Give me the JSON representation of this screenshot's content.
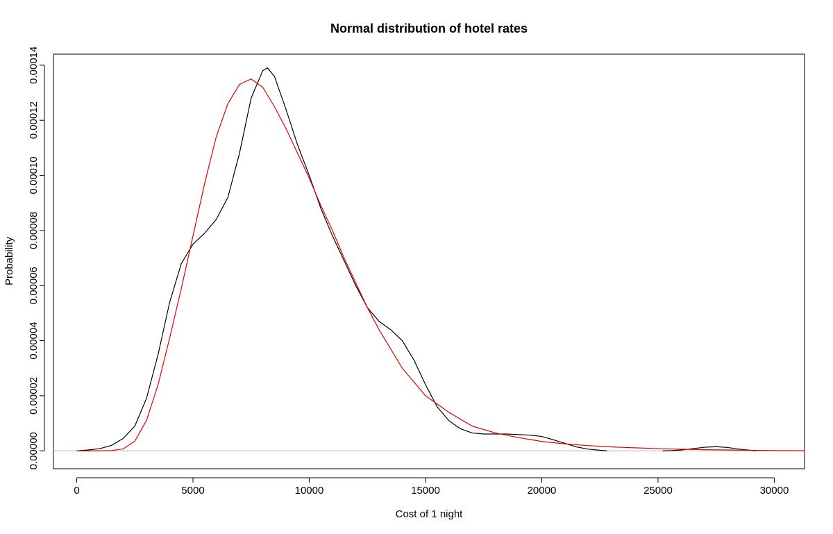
{
  "chart_data": {
    "type": "line",
    "title": "Normal distribution of hotel rates",
    "xlabel": "Cost of 1 night",
    "ylabel": "Probability",
    "xlim": [
      -1000,
      31300
    ],
    "ylim": [
      -6.5e-06,
      0.000144
    ],
    "x_ticks": [
      0,
      5000,
      10000,
      15000,
      20000,
      25000,
      30000
    ],
    "x_tick_labels": [
      "0",
      "5000",
      "10000",
      "15000",
      "20000",
      "25000",
      "30000"
    ],
    "y_ticks": [
      0,
      2e-05,
      4e-05,
      6e-05,
      8e-05,
      0.0001,
      0.00012,
      0.00014
    ],
    "y_tick_labels": [
      "0.00000",
      "0.00002",
      "0.00004",
      "0.00006",
      "0.00008",
      "0.00010",
      "0.00012",
      "0.00014"
    ],
    "baseline": {
      "y": 0,
      "color": "#b0b0b0"
    },
    "series": [
      {
        "color": "#000000",
        "x": [
          0,
          500,
          1000,
          1500,
          2000,
          2500,
          3000,
          3500,
          4000,
          4500,
          5000,
          5500,
          6000,
          6500,
          7000,
          7500,
          8000,
          8200,
          8500,
          9000,
          9500,
          10000,
          10500,
          11000,
          11500,
          12000,
          12500,
          13000,
          13500,
          14000,
          14500,
          15000,
          15500,
          16000,
          16500,
          17000,
          17500,
          18000,
          18500,
          19000,
          19500,
          20000,
          20500,
          21000,
          21500,
          22000,
          22800
        ],
        "y": [
          0,
          3e-07,
          8e-07,
          2e-06,
          4.5e-06,
          9e-06,
          1.9e-05,
          3.5e-05,
          5.4e-05,
          6.8e-05,
          7.5e-05,
          7.9e-05,
          8.4e-05,
          9.2e-05,
          0.000108,
          0.000128,
          0.000138,
          0.000139,
          0.000136,
          0.000124,
          0.000111,
          0.0001,
          8.8e-05,
          7.8e-05,
          6.9e-05,
          6e-05,
          5.2e-05,
          4.7e-05,
          4.4e-05,
          4e-05,
          3.3e-05,
          2.4e-05,
          1.6e-05,
          1.1e-05,
          8e-06,
          6.5e-06,
          6.1e-06,
          6.1e-06,
          6.1e-06,
          5.9e-06,
          5.7e-06,
          5.2e-06,
          4e-06,
          2.7e-06,
          1.4e-06,
          6e-07,
          0
        ],
        "x2": [
          25200,
          25600,
          26000,
          26500,
          27000,
          27500,
          28000,
          28500,
          29000,
          29200
        ],
        "y2": [
          0,
          1e-07,
          3e-07,
          8e-07,
          1.3e-06,
          1.5e-06,
          1.2e-06,
          6e-07,
          2e-07,
          0
        ]
      },
      {
        "color": "#e00000",
        "x": [
          0,
          1000,
          1500,
          2000,
          2500,
          3000,
          3500,
          4000,
          4500,
          5000,
          5500,
          6000,
          6500,
          7000,
          7500,
          8000,
          8500,
          9000,
          9500,
          10000,
          10500,
          11000,
          11500,
          12000,
          12500,
          13000,
          13500,
          14000,
          14500,
          15000,
          15500,
          16000,
          17000,
          18000,
          19000,
          20000,
          21000,
          22000,
          23000,
          24000,
          25000,
          26000,
          27000,
          28000,
          29000,
          30000,
          31300
        ],
        "y": [
          0,
          0,
          1e-07,
          7e-07,
          3.5e-06,
          1.1e-05,
          2.4e-05,
          4.1e-05,
          5.9e-05,
          7.8e-05,
          9.7e-05,
          0.000114,
          0.000126,
          0.000133,
          0.000135,
          0.000132,
          0.000125,
          0.000117,
          0.000108,
          9.9e-05,
          8.9e-05,
          8e-05,
          7e-05,
          6.1e-05,
          5.2e-05,
          4.4e-05,
          3.7e-05,
          3e-05,
          2.5e-05,
          2e-05,
          1.7e-05,
          1.4e-05,
          9e-06,
          6.5e-06,
          4.8e-06,
          3.4e-06,
          2.5e-06,
          1.9e-06,
          1.4e-06,
          1.1e-06,
          8e-07,
          6e-07,
          4e-07,
          3e-07,
          2e-07,
          1e-07,
          5e-08
        ]
      }
    ]
  }
}
